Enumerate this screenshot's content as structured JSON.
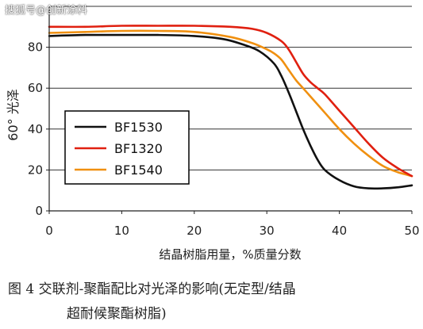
{
  "watermark": "搜狐号@创新涂料",
  "caption": {
    "line1": "图 4    交联剂-聚酯配比对光泽的影响(无定型/结晶",
    "line2": "超耐候聚酯树脂)"
  },
  "chart_data": {
    "type": "line",
    "xlabel": "结晶树脂用量，%质量分数",
    "ylabel": "60° 光泽",
    "xlim": [
      0,
      50
    ],
    "ylim": [
      0,
      100
    ],
    "xticks": [
      0,
      10,
      20,
      30,
      40,
      50
    ],
    "yticks": [
      0,
      20,
      40,
      60,
      80
    ],
    "grid": "horizontal",
    "legend": "center-left",
    "series": [
      {
        "name": "BF1530",
        "color": "#111111",
        "x": [
          0,
          5,
          10,
          15,
          20,
          24,
          27,
          29,
          31,
          32,
          33,
          34,
          35,
          36,
          37,
          38,
          40,
          42,
          44,
          46,
          48,
          50
        ],
        "y": [
          85.5,
          86,
          86,
          86,
          85.5,
          84,
          81,
          78,
          72,
          66,
          58,
          49,
          40,
          32,
          25,
          20,
          15,
          12,
          11,
          11,
          11.5,
          12.5
        ]
      },
      {
        "name": "BF1320",
        "color": "#e02010",
        "x": [
          0,
          5,
          10,
          15,
          20,
          25,
          28,
          30,
          32,
          33,
          34,
          35,
          36,
          37,
          38,
          40,
          42,
          44,
          46,
          48,
          50
        ],
        "y": [
          90,
          90,
          90.5,
          90.5,
          90.5,
          90,
          89,
          87,
          83,
          79,
          73,
          67,
          63,
          60,
          57,
          49,
          41,
          33,
          26,
          21,
          17
        ]
      },
      {
        "name": "BF1540",
        "color": "#f09010",
        "x": [
          0,
          5,
          10,
          15,
          20,
          25,
          28,
          30,
          31,
          32,
          33,
          34,
          35,
          36,
          38,
          40,
          42,
          44,
          46,
          48,
          50
        ],
        "y": [
          87,
          87.5,
          88,
          88,
          87.5,
          85,
          82,
          79,
          77,
          74,
          69,
          64,
          60,
          56,
          48,
          40,
          33,
          27,
          22,
          19,
          17
        ]
      }
    ]
  }
}
